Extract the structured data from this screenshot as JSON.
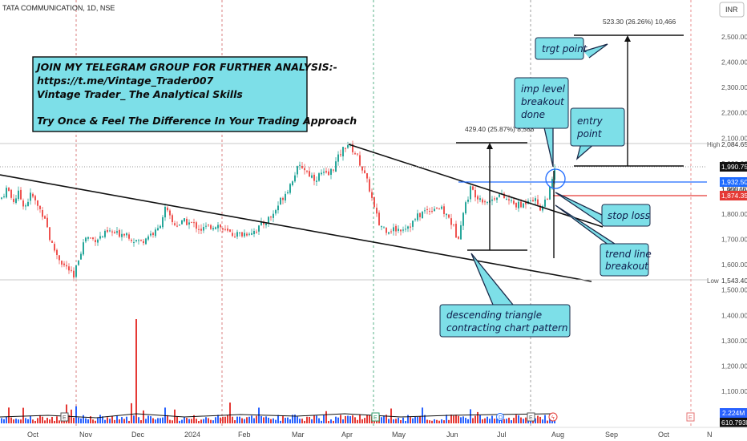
{
  "header": {
    "symbol_line": "TATA COMMUNICATION, 1D, NSE",
    "currency": "INR"
  },
  "colors": {
    "up": "#26a69a",
    "down": "#ef5350",
    "blue_line": "#1e6bff",
    "red_line": "#e53935",
    "callout_fill": "#7ddfe8",
    "callout_stroke": "#1a2a4a",
    "vol_up": "#2962ff",
    "vol_down": "#e53935"
  },
  "chart_data": {
    "type": "candlestick",
    "x_labels": [
      "Oct",
      "Nov",
      "Dec",
      "2024",
      "Feb",
      "Mar",
      "Apr",
      "May",
      "Jun",
      "Jul",
      "Aug",
      "Sep",
      "Oct",
      "N"
    ],
    "y_ticks": [
      1100,
      1200,
      1300,
      1400,
      1500,
      1600,
      1700,
      1800,
      1900,
      2000,
      2100,
      2200,
      2300,
      2400,
      2500
    ],
    "y_tick_labels": [
      "1,100.00",
      "1,200.00",
      "1,300.00",
      "1,400.00",
      "1,500.00",
      "1,600.00",
      "1,700.00",
      "1,800.00",
      "1,900.00",
      "2,000.00",
      "2,100.00",
      "2,200.00",
      "2,300.00",
      "2,400.00",
      "2,500.00"
    ],
    "ylim": [
      1080,
      2600
    ],
    "price_path": [
      [
        0,
        1860
      ],
      [
        8,
        1905
      ],
      [
        15,
        1850
      ],
      [
        22,
        1880
      ],
      [
        30,
        1830
      ],
      [
        38,
        1880
      ],
      [
        46,
        1830
      ],
      [
        55,
        1790
      ],
      [
        62,
        1690
      ],
      [
        70,
        1640
      ],
      [
        78,
        1600
      ],
      [
        85,
        1580
      ],
      [
        91,
        1545
      ],
      [
        98,
        1640
      ],
      [
        106,
        1710
      ],
      [
        115,
        1700
      ],
      [
        125,
        1710
      ],
      [
        135,
        1730
      ],
      [
        145,
        1720
      ],
      [
        155,
        1730
      ],
      [
        165,
        1700
      ],
      [
        175,
        1690
      ],
      [
        185,
        1720
      ],
      [
        195,
        1730
      ],
      [
        205,
        1820
      ],
      [
        215,
        1760
      ],
      [
        222,
        1760
      ],
      [
        230,
        1770
      ],
      [
        240,
        1760
      ],
      [
        250,
        1740
      ],
      [
        260,
        1750
      ],
      [
        270,
        1760
      ],
      [
        280,
        1730
      ],
      [
        290,
        1720
      ],
      [
        300,
        1720
      ],
      [
        310,
        1730
      ],
      [
        320,
        1740
      ],
      [
        330,
        1770
      ],
      [
        340,
        1800
      ],
      [
        350,
        1860
      ],
      [
        360,
        1910
      ],
      [
        368,
        1970
      ],
      [
        376,
        1990
      ],
      [
        384,
        1960
      ],
      [
        392,
        1940
      ],
      [
        400,
        1960
      ],
      [
        408,
        1950
      ],
      [
        416,
        1990
      ],
      [
        424,
        2040
      ],
      [
        432,
        2080
      ],
      [
        438,
        2060
      ],
      [
        446,
        2020
      ],
      [
        452,
        1970
      ],
      [
        460,
        1900
      ],
      [
        466,
        1820
      ],
      [
        472,
        1760
      ],
      [
        480,
        1740
      ],
      [
        488,
        1740
      ],
      [
        496,
        1740
      ],
      [
        504,
        1750
      ],
      [
        512,
        1760
      ],
      [
        520,
        1790
      ],
      [
        528,
        1810
      ],
      [
        536,
        1820
      ],
      [
        544,
        1830
      ],
      [
        552,
        1810
      ],
      [
        560,
        1780
      ],
      [
        566,
        1740
      ],
      [
        570,
        1700
      ],
      [
        574,
        1770
      ],
      [
        580,
        1840
      ],
      [
        586,
        1900
      ],
      [
        592,
        1880
      ],
      [
        600,
        1860
      ],
      [
        610,
        1850
      ],
      [
        620,
        1880
      ],
      [
        630,
        1860
      ],
      [
        640,
        1840
      ],
      [
        650,
        1830
      ],
      [
        660,
        1870
      ],
      [
        668,
        1850
      ],
      [
        674,
        1820
      ],
      [
        680,
        1860
      ],
      [
        686,
        1900
      ],
      [
        690,
        1960
      ],
      [
        693,
        1990
      ]
    ],
    "volume_spike": {
      "x": 170,
      "label": "spike"
    },
    "annotations": {
      "high": {
        "label": "High",
        "value": "2,084.65"
      },
      "low": {
        "label": "Low",
        "value": "1,543.40"
      },
      "last": "1,990.75",
      "blue_level": "1,932.50",
      "red_level": "1,874.35",
      "other_level": "1,900.00",
      "vol1": "2.224M",
      "vol2": "610.793K",
      "measure_pattern": "429.40 (25.87%) 8,588",
      "measure_target": "523.30 (26.26%) 10,466"
    }
  },
  "banner": {
    "line1": "JOIN MY TELEGRAM  GROUP FOR FURTHER ANALYSIS:-",
    "line2": "https://t.me/Vintage_Trader007",
    "line3": "Vintage Trader_ The Analytical Skills",
    "line4": "Try Once & Feel The Difference In Your Trading Approach"
  },
  "callouts": {
    "target": "trgt point",
    "breakout_l1": "imp level",
    "breakout_l2": "breakout",
    "breakout_l3": "done",
    "entry_l1": "entry",
    "entry_l2": "point",
    "stoploss": "stop loss",
    "trend_l1": "trend line",
    "trend_l2": "breakout",
    "pattern_l1": "descending triangle",
    "pattern_l2": "contracting chart pattern"
  }
}
